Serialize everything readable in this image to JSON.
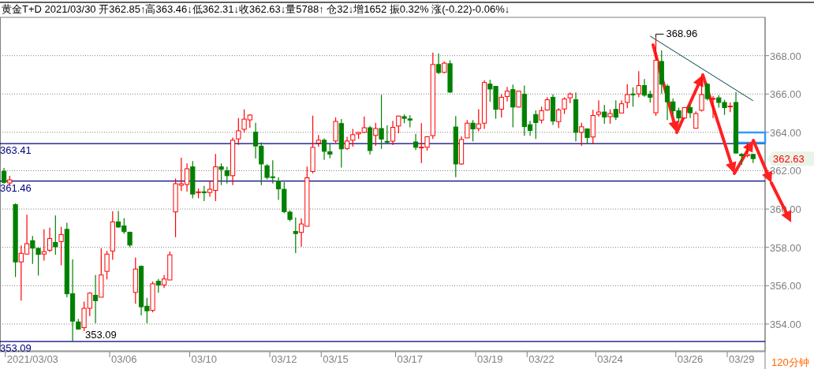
{
  "chart_data": {
    "type": "candlestick",
    "title": "黄金T+D 2021/03/30 开362.85↑高363.46↓低362.31↓收362.63↓量5788↑ 仓32↓增1652 振0.32% 涨(-0.22)-0.06%↓",
    "categories": [
      null,
      null,
      null,
      null,
      null,
      "2021/03/03",
      null,
      null,
      null,
      null,
      null,
      null,
      null,
      null,
      null,
      null,
      null,
      null,
      null,
      null,
      null,
      "03/06",
      null,
      null,
      null,
      null,
      null,
      null,
      null,
      null,
      null,
      null,
      null,
      null,
      null,
      "03/10",
      null,
      null,
      null,
      null,
      null,
      null,
      null,
      null,
      null,
      null,
      null,
      null,
      null,
      "03/12",
      null,
      null,
      null,
      null,
      null,
      null,
      null,
      null,
      "03/15",
      null,
      null,
      null,
      null,
      null,
      null,
      null,
      null,
      null,
      null,
      null,
      null,
      "03/17",
      null,
      null,
      null,
      null,
      null,
      null,
      null,
      null,
      null,
      null,
      null,
      null,
      null,
      "03/19",
      null,
      null,
      null,
      null,
      null,
      null,
      null,
      null,
      "03/22",
      null,
      null,
      null,
      null,
      null,
      null,
      null,
      null,
      null,
      null,
      null,
      "03/24",
      null,
      null,
      null,
      null,
      null,
      null,
      null,
      null,
      null,
      null,
      null,
      null,
      null,
      "03/26",
      null,
      null,
      null,
      null,
      null,
      null,
      null,
      null,
      "03/29",
      null,
      null
    ],
    "ohlc": [
      [
        361.97,
        362.14,
        361.32,
        361.39
      ],
      [
        361.36,
        361.73,
        361.25,
        361.52
      ],
      [
        360.23,
        360.3,
        356.45,
        357.24
      ],
      [
        357.24,
        358.1,
        355.22,
        357.69
      ],
      [
        357.65,
        359.71,
        357.65,
        358.19
      ],
      [
        358.35,
        358.6,
        357.13,
        357.96
      ],
      [
        357.95,
        357.98,
        356.53,
        357.63
      ],
      [
        357.65,
        358.94,
        357.31,
        357.78
      ],
      [
        357.85,
        359.03,
        357.76,
        358.46
      ],
      [
        358.26,
        359.66,
        357.62,
        358.03
      ],
      [
        358.3,
        359.07,
        357.07,
        358.67
      ],
      [
        358.94,
        359.28,
        355.4,
        355.58
      ],
      [
        355.58,
        357.37,
        353.09,
        354.15
      ],
      [
        354.11,
        354.27,
        353.7,
        353.74
      ],
      [
        353.81,
        355.17,
        353.63,
        354.82
      ],
      [
        354.82,
        355.66,
        354.41,
        355.61
      ],
      [
        355.5,
        356.56,
        354.04,
        355.22
      ],
      [
        355.4,
        357.95,
        355.4,
        356.56
      ],
      [
        356.75,
        357.82,
        356.33,
        357.65
      ],
      [
        357.81,
        359.88,
        357.35,
        359.33
      ],
      [
        359.33,
        359.89,
        359.03,
        359.06
      ],
      [
        359.12,
        359.52,
        358.71,
        358.82
      ],
      [
        358.79,
        358.82,
        358.01,
        358.12
      ],
      [
        355.65,
        357.47,
        355.06,
        356.87
      ],
      [
        357.01,
        357.05,
        354.45,
        354.9
      ],
      [
        354.93,
        355.37,
        354.04,
        354.69
      ],
      [
        354.71,
        356.22,
        354.61,
        356.1
      ],
      [
        356.23,
        356.35,
        355.63,
        356.04
      ],
      [
        356.04,
        356.56,
        355.88,
        356.35
      ],
      [
        356.3,
        357.78,
        356.3,
        357.61
      ],
      [
        359.85,
        361.59,
        358.53,
        361.32
      ],
      [
        361.24,
        362.68,
        360.94,
        361.32
      ],
      [
        361.28,
        362.38,
        360.91,
        362.1
      ],
      [
        362.2,
        362.5,
        360.56,
        360.78
      ],
      [
        360.85,
        361.07,
        360.56,
        360.9
      ],
      [
        360.9,
        361.21,
        360.42,
        360.85
      ],
      [
        360.86,
        361.46,
        360.64,
        361.03
      ],
      [
        360.97,
        362.87,
        360.42,
        362.2
      ],
      [
        362.2,
        362.38,
        361.25,
        362.07
      ],
      [
        362.0,
        362.2,
        361.33,
        361.74
      ],
      [
        361.74,
        363.73,
        361.25,
        363.59
      ],
      [
        363.66,
        364.75,
        363.35,
        364.08
      ],
      [
        364.16,
        365.2,
        363.99,
        364.69
      ],
      [
        364.65,
        364.95,
        364.23,
        364.9
      ],
      [
        364.01,
        364.5,
        362.64,
        363.29
      ],
      [
        363.28,
        363.47,
        361.25,
        362.35
      ],
      [
        362.26,
        362.34,
        361.54,
        361.65
      ],
      [
        361.68,
        362.54,
        361.33,
        361.65
      ],
      [
        361.46,
        361.65,
        360.48,
        361.05
      ],
      [
        361.03,
        361.4,
        359.78,
        359.86
      ],
      [
        359.84,
        359.93,
        359.36,
        359.46
      ],
      [
        358.83,
        359.56,
        357.7,
        358.72
      ],
      [
        358.78,
        359.51,
        358.04,
        359.22
      ],
      [
        359.1,
        362.22,
        359.1,
        361.63
      ],
      [
        361.96,
        364.87,
        361.86,
        363.22
      ],
      [
        363.44,
        363.86,
        363.25,
        363.59
      ],
      [
        363.59,
        363.69,
        362.57,
        363.01
      ],
      [
        362.99,
        363.41,
        362.65,
        362.86
      ],
      [
        363.55,
        364.78,
        363.46,
        364.57
      ],
      [
        364.46,
        364.69,
        362.16,
        363.14
      ],
      [
        363.16,
        363.77,
        363.09,
        363.55
      ],
      [
        363.59,
        364.18,
        363.25,
        363.88
      ],
      [
        363.92,
        364.02,
        363.66,
        364.0
      ],
      [
        364.0,
        364.83,
        363.96,
        364.24
      ],
      [
        364.24,
        364.33,
        362.84,
        363.05
      ],
      [
        363.84,
        364.5,
        363.29,
        364.2
      ],
      [
        364.2,
        365.96,
        363.14,
        363.65
      ],
      [
        363.53,
        364.36,
        363.42,
        363.5
      ],
      [
        363.54,
        364.6,
        363.34,
        364.26
      ],
      [
        364.33,
        364.87,
        363.95,
        364.85
      ],
      [
        364.82,
        364.94,
        364.47,
        364.73
      ],
      [
        364.7,
        364.9,
        364.26,
        364.64
      ],
      [
        363.5,
        363.92,
        363.08,
        363.22
      ],
      [
        363.2,
        364.48,
        362.4,
        363.23
      ],
      [
        363.22,
        363.8,
        363.04,
        363.77
      ],
      [
        363.83,
        368.16,
        363.65,
        367.54
      ],
      [
        367.54,
        368.12,
        367.04,
        367.12
      ],
      [
        367.13,
        367.7,
        367.08,
        367.61
      ],
      [
        367.58,
        367.76,
        366.06,
        366.1
      ],
      [
        364.28,
        364.85,
        361.66,
        362.35
      ],
      [
        362.35,
        363.79,
        362.31,
        363.63
      ],
      [
        363.71,
        364.64,
        363.71,
        364.48
      ],
      [
        364.48,
        364.64,
        363.53,
        364.18
      ],
      [
        364.2,
        365.21,
        364.06,
        364.44
      ],
      [
        364.48,
        366.72,
        364.18,
        366.6
      ],
      [
        366.52,
        366.74,
        365.6,
        366.26
      ],
      [
        366.4,
        366.42,
        364.71,
        365.2
      ],
      [
        365.21,
        365.99,
        364.78,
        365.83
      ],
      [
        365.87,
        366.37,
        365.61,
        366.15
      ],
      [
        366.23,
        366.49,
        364.26,
        365.32
      ],
      [
        365.32,
        366.17,
        365.3,
        366.15
      ],
      [
        365.99,
        366.44,
        363.82,
        364.3
      ],
      [
        364.4,
        364.6,
        363.82,
        364.1
      ],
      [
        364.93,
        365.15,
        363.65,
        364.51
      ],
      [
        364.64,
        365.34,
        364.47,
        365.13
      ],
      [
        365.17,
        365.84,
        365.13,
        365.7
      ],
      [
        365.83,
        365.99,
        364.39,
        364.59
      ],
      [
        364.56,
        365.26,
        364.22,
        365.17
      ],
      [
        365.22,
        365.83,
        364.96,
        365.74
      ],
      [
        365.8,
        366.08,
        365.53,
        366.0
      ],
      [
        365.71,
        366.08,
        363.53,
        364.0
      ],
      [
        364.0,
        364.5,
        363.3,
        364.29
      ],
      [
        364.18,
        364.21,
        363.39,
        363.73
      ],
      [
        363.76,
        365.18,
        363.39,
        364.88
      ],
      [
        364.94,
        365.67,
        364.82,
        365.06
      ],
      [
        365.06,
        365.43,
        364.45,
        364.8
      ],
      [
        364.82,
        365.2,
        364.45,
        364.98
      ],
      [
        365.2,
        365.67,
        364.64,
        364.79
      ],
      [
        365.01,
        365.67,
        365.01,
        365.49
      ],
      [
        365.56,
        366.51,
        365.26,
        365.97
      ],
      [
        366.0,
        366.35,
        365.34,
        365.97
      ],
      [
        366.01,
        367.19,
        365.83,
        366.44
      ],
      [
        366.44,
        366.78,
        365.86,
        365.94
      ],
      [
        365.99,
        366.17,
        365.56,
        365.83
      ],
      [
        365.02,
        368.96,
        364.86,
        367.76
      ],
      [
        367.7,
        368.27,
        366.02,
        366.51
      ],
      [
        366.41,
        366.51,
        364.64,
        365.59
      ],
      [
        365.59,
        365.76,
        364.88,
        365.13
      ],
      [
        365.13,
        365.29,
        364.54,
        364.75
      ],
      [
        364.75,
        365.32,
        364.71,
        365.29
      ],
      [
        365.29,
        365.43,
        364.75,
        365.02
      ],
      [
        364.21,
        365.09,
        364.2,
        364.98
      ],
      [
        365.15,
        366.98,
        365.09,
        365.97
      ],
      [
        366.51,
        366.58,
        365.67,
        365.76
      ],
      [
        365.74,
        365.9,
        364.75,
        365.77
      ],
      [
        365.8,
        365.94,
        365.29,
        365.56
      ],
      [
        365.56,
        365.7,
        364.91,
        365.29
      ],
      [
        365.34,
        365.56,
        365.05,
        365.37
      ],
      [
        365.56,
        366.1,
        362.9,
        362.92
      ],
      [
        362.85,
        362.92,
        362.31,
        362.78
      ],
      [
        362.78,
        363.46,
        362.7,
        362.85
      ],
      [
        362.85,
        362.88,
        362.4,
        362.63
      ]
    ],
    "ylim": [
      352.6,
      370.0
    ],
    "yticks": [
      {
        "value": 354,
        "label": "354.00"
      },
      {
        "value": 356,
        "label": "356.00"
      },
      {
        "value": 358,
        "label": "358.00"
      },
      {
        "value": 360,
        "label": "360.00"
      },
      {
        "value": 362,
        "label": "362.00"
      },
      {
        "value": 364,
        "label": "364.00"
      },
      {
        "value": 366,
        "label": "366.00"
      },
      {
        "value": 368,
        "label": "368.00"
      }
    ],
    "grid": "y",
    "ref_lines": [
      {
        "axis": "y",
        "value": 363.41,
        "label": "363.41",
        "color": "#000080"
      },
      {
        "axis": "y",
        "value": 361.46,
        "label": "361.46",
        "color": "#000080"
      },
      {
        "axis": "y",
        "value": 353.09,
        "label": "353.09",
        "color": "#000080"
      }
    ],
    "series": [
      {
        "type": "line",
        "color": "#004040",
        "values": [
          null,
          null,
          null,
          null,
          null,
          null,
          null,
          null,
          null,
          null,
          null,
          null,
          null,
          null,
          null,
          null,
          null,
          null,
          null,
          null,
          null,
          null,
          null,
          null,
          null,
          null,
          null,
          null,
          null,
          null,
          null,
          null,
          null,
          null,
          null,
          null,
          null,
          null,
          null,
          null,
          null,
          null,
          null,
          null,
          null,
          null,
          null,
          null,
          null,
          null,
          null,
          null,
          null,
          null,
          null,
          null,
          null,
          null,
          null,
          null,
          null,
          null,
          null,
          null,
          null,
          null,
          null,
          null,
          null,
          null,
          null,
          null,
          null,
          null,
          null,
          null,
          null,
          null,
          null,
          null,
          null,
          null,
          null,
          null,
          null,
          null,
          null,
          null,
          null,
          null,
          null,
          null,
          null,
          null,
          null,
          null,
          null,
          null,
          null,
          null,
          null,
          null,
          null,
          null,
          null,
          null,
          null,
          null,
          null,
          null,
          null,
          null,
          null,
          369.02,
          null,
          null,
          null,
          null,
          null,
          null,
          null,
          null,
          null,
          null,
          null,
          null,
          null,
          null,
          null,
          null,
          null,
          365.65
        ]
      }
    ],
    "annotations": [
      "368.96",
      "353.09",
      "362.63",
      "120分钟"
    ]
  }
}
